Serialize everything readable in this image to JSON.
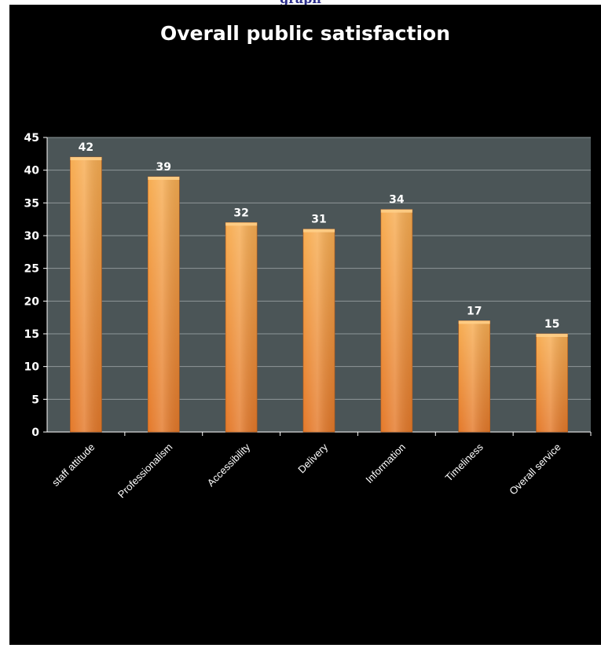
{
  "page": {
    "caption": "graph"
  },
  "chart_data": {
    "type": "bar",
    "title": "Overall public satisfaction",
    "categories": [
      "staff attitude",
      "Professionalism",
      "Accessibility",
      "Delivery",
      "Information",
      "Timeliness",
      "Overall service"
    ],
    "values": [
      42,
      39,
      32,
      31,
      34,
      17,
      15
    ],
    "ylim": [
      0,
      45
    ],
    "yticks": [
      0,
      5,
      10,
      15,
      20,
      25,
      30,
      35,
      40,
      45
    ],
    "grid": true,
    "legend": "none",
    "colors": {
      "frame": "#000000",
      "plot_bg": "#4b5557",
      "grid": "#8e9799",
      "bar_light": "#f7ad52",
      "bar_dark": "#e4792a",
      "text": "#ffffff"
    }
  }
}
